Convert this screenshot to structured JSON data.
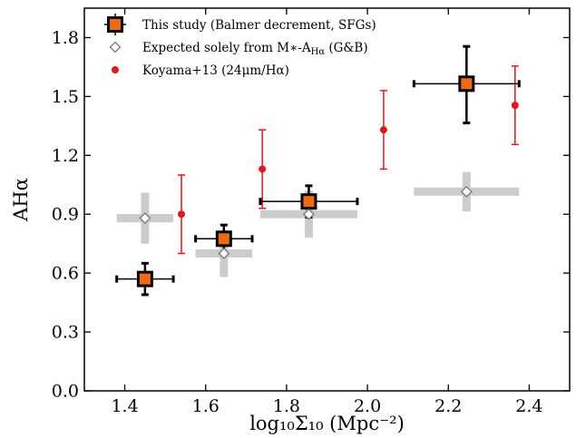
{
  "chart_data": {
    "type": "scatter",
    "xlabel": "log₁₀Σ₁₀ (Mpc⁻²)",
    "ylabel": "A_Hα",
    "xlim": [
      1.3,
      2.5
    ],
    "ylim": [
      0.0,
      1.95
    ],
    "xticks": [
      "1.4",
      "1.6",
      "1.8",
      "2.0",
      "2.2",
      "2.4"
    ],
    "yticks": [
      "0.0",
      "0.3",
      "0.6",
      "0.9",
      "1.2",
      "1.5",
      "1.8"
    ],
    "grid": false,
    "legend_position": "top-left",
    "series": [
      {
        "name": "This study (Balmer decrement, SFGs)",
        "marker": "square",
        "color": "#f26a10",
        "points": [
          {
            "x": 1.45,
            "y": 0.57,
            "xerr": [
              0.07,
              0.07
            ],
            "yerr": [
              0.08,
              0.08
            ]
          },
          {
            "x": 1.645,
            "y": 0.775,
            "xerr": [
              0.07,
              0.07
            ],
            "yerr": [
              0.07,
              0.07
            ]
          },
          {
            "x": 1.855,
            "y": 0.965,
            "xerr": [
              0.12,
              0.12
            ],
            "yerr": [
              0.08,
              0.08
            ]
          },
          {
            "x": 2.245,
            "y": 1.565,
            "xerr": [
              0.13,
              0.13
            ],
            "yerr": [
              0.2,
              0.19
            ]
          }
        ]
      },
      {
        "name": "Expected solely from M∗-A_Hα (G&B)",
        "marker": "diamond",
        "color": "#ffffff",
        "points": [
          {
            "x": 1.45,
            "y": 0.88,
            "xerr": [
              0.07,
              0.07
            ],
            "yerr": [
              0.13,
              0.13
            ]
          },
          {
            "x": 1.645,
            "y": 0.7,
            "xerr": [
              0.07,
              0.07
            ],
            "yerr": [
              0.12,
              0.12
            ]
          },
          {
            "x": 1.855,
            "y": 0.9,
            "xerr": [
              0.12,
              0.12
            ],
            "yerr": [
              0.12,
              0.12
            ]
          },
          {
            "x": 2.245,
            "y": 1.015,
            "xerr": [
              0.13,
              0.13
            ],
            "yerr": [
              0.1,
              0.1
            ]
          }
        ]
      },
      {
        "name": "Koyama+13 (24μm/Hα)",
        "marker": "circle",
        "color": "#e8141c",
        "points": [
          {
            "x": 1.54,
            "y": 0.9,
            "yerr": [
              0.2,
              0.2
            ]
          },
          {
            "x": 1.74,
            "y": 1.13,
            "yerr": [
              0.2,
              0.2
            ]
          },
          {
            "x": 2.04,
            "y": 1.33,
            "yerr": [
              0.2,
              0.2
            ]
          },
          {
            "x": 2.365,
            "y": 1.455,
            "yerr": [
              0.2,
              0.2
            ]
          }
        ]
      }
    ]
  },
  "legend": {
    "entries": [
      {
        "prefix": "This study (Balmer decrement, SFGs)",
        "sub": "",
        "suffix": ""
      },
      {
        "prefix": "Expected solely from M∗-A",
        "sub": "Hα",
        "suffix": " (G&B)"
      },
      {
        "prefix": "Koyama+13 (24μm/Hα)",
        "sub": "",
        "suffix": ""
      }
    ]
  },
  "colors": {
    "orange_fill": "#f26a10",
    "red": "#e8141c",
    "gray_band": "#cccccc",
    "black": "#000000"
  }
}
